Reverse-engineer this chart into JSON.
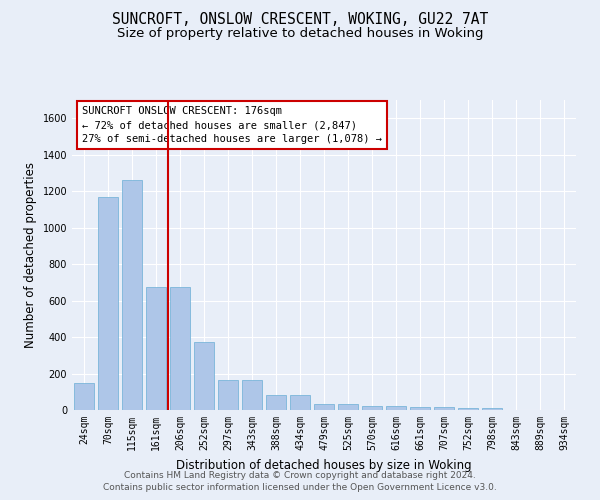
{
  "title_line1": "SUNCROFT, ONSLOW CRESCENT, WOKING, GU22 7AT",
  "title_line2": "Size of property relative to detached houses in Woking",
  "xlabel": "Distribution of detached houses by size in Woking",
  "ylabel": "Number of detached properties",
  "categories": [
    "24sqm",
    "70sqm",
    "115sqm",
    "161sqm",
    "206sqm",
    "252sqm",
    "297sqm",
    "343sqm",
    "388sqm",
    "434sqm",
    "479sqm",
    "525sqm",
    "570sqm",
    "616sqm",
    "661sqm",
    "707sqm",
    "752sqm",
    "798sqm",
    "843sqm",
    "889sqm",
    "934sqm"
  ],
  "values": [
    148,
    1170,
    1260,
    675,
    675,
    375,
    165,
    165,
    80,
    80,
    35,
    35,
    22,
    22,
    15,
    15,
    10,
    10,
    0,
    0,
    0
  ],
  "bar_color": "#aec6e8",
  "bar_edge_color": "#6aaed6",
  "vline_x": 3.5,
  "vline_color": "#cc0000",
  "annotation_text": "SUNCROFT ONSLOW CRESCENT: 176sqm\n← 72% of detached houses are smaller (2,847)\n27% of semi-detached houses are larger (1,078) →",
  "annotation_box_color": "#ffffff",
  "annotation_border_color": "#cc0000",
  "ylim": [
    0,
    1700
  ],
  "yticks": [
    0,
    200,
    400,
    600,
    800,
    1000,
    1200,
    1400,
    1600
  ],
  "background_color": "#e8eef8",
  "grid_color": "#ffffff",
  "footer_line1": "Contains HM Land Registry data © Crown copyright and database right 2024.",
  "footer_line2": "Contains public sector information licensed under the Open Government Licence v3.0.",
  "title_fontsize": 10.5,
  "subtitle_fontsize": 9.5,
  "axis_label_fontsize": 8.5,
  "tick_fontsize": 7,
  "footer_fontsize": 6.5
}
